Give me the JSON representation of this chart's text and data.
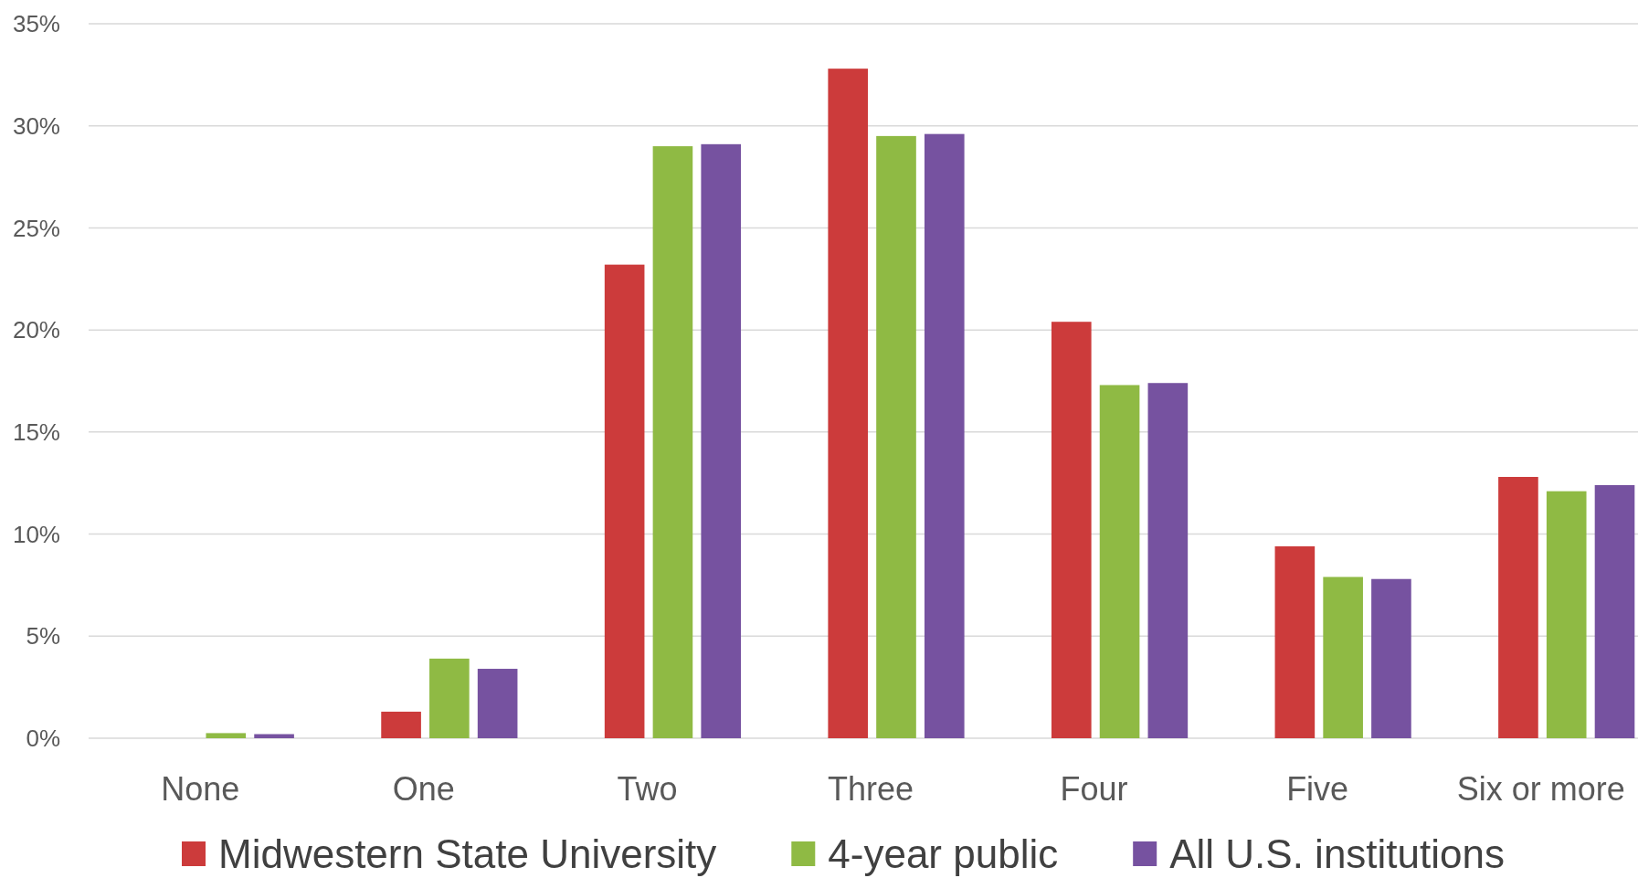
{
  "chart_data": {
    "type": "bar",
    "categories": [
      "None",
      "One",
      "Two",
      "Three",
      "Four",
      "Five",
      "Six or more"
    ],
    "series": [
      {
        "name": "Midwestern State University",
        "color": "#cc3b3b",
        "values": [
          0,
          1.3,
          23.2,
          32.8,
          20.4,
          9.4,
          12.8
        ]
      },
      {
        "name": "4-year public",
        "color": "#8fba44",
        "values": [
          0.25,
          3.9,
          29.0,
          29.5,
          17.3,
          7.9,
          12.1
        ]
      },
      {
        "name": "All U.S. institutions",
        "color": "#7652a0",
        "values": [
          0.2,
          3.4,
          29.1,
          29.6,
          17.4,
          7.8,
          12.4
        ]
      }
    ],
    "ylim": [
      0,
      35
    ],
    "yticks": [
      {
        "value": 0,
        "label": "0%"
      },
      {
        "value": 5,
        "label": "5%"
      },
      {
        "value": 10,
        "label": "10%"
      },
      {
        "value": 15,
        "label": "15%"
      },
      {
        "value": 20,
        "label": "20%"
      },
      {
        "value": 25,
        "label": "25%"
      },
      {
        "value": 30,
        "label": "30%"
      },
      {
        "value": 35,
        "label": "35%"
      }
    ],
    "grid": "y",
    "legend": "bottom"
  }
}
